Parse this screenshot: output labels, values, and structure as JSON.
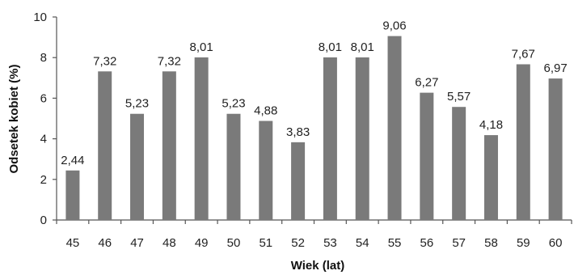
{
  "chart_data": {
    "type": "bar",
    "title": "",
    "xlabel": "Wiek (lat)",
    "ylabel": "Odsetek kobiet (%)",
    "ylim": [
      0,
      10
    ],
    "yticks": [
      0,
      2,
      4,
      6,
      8,
      10
    ],
    "grid": false,
    "categories": [
      "45",
      "46",
      "47",
      "48",
      "49",
      "50",
      "51",
      "52",
      "53",
      "54",
      "55",
      "56",
      "57",
      "58",
      "59",
      "60"
    ],
    "values": [
      2.44,
      7.32,
      5.23,
      7.32,
      8.01,
      5.23,
      4.88,
      3.83,
      8.01,
      8.01,
      9.06,
      6.27,
      5.57,
      4.18,
      7.67,
      6.97
    ],
    "value_labels": [
      "2,44",
      "7,32",
      "5,23",
      "7,32",
      "8,01",
      "5,23",
      "4,88",
      "3,83",
      "8,01",
      "8,01",
      "9,06",
      "6,27",
      "5,57",
      "4,18",
      "7,67",
      "6,97"
    ],
    "bar_color": "#7a7a7a",
    "axis_color": "#555555"
  }
}
